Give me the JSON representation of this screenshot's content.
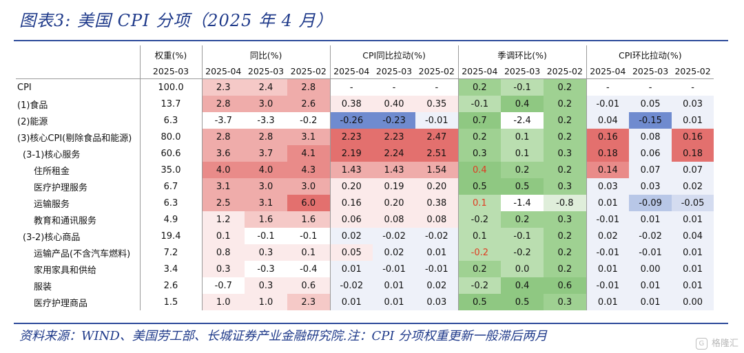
{
  "title": "图表3:  美国 CPI 分项（2025 年 4 月）",
  "source": "资料来源：WIND、美国劳工部、长城证券产业金融研究院.注：CPI 分项权重更新一般滞后两月",
  "watermark": "格隆汇",
  "watermark_icon": "G",
  "header": {
    "groups": [
      "权重(%)",
      "同比(%)",
      "CPI同比拉动(%)",
      "季调环比(%)",
      "CPI环比拉动(%)"
    ],
    "weight_period": "2025-03",
    "periods": [
      "2025-04",
      "2025-03",
      "2025-02"
    ]
  },
  "colors": {
    "red_scale": [
      "#fbeaea",
      "#f5c9c7",
      "#efacaa",
      "#e98b89",
      "#e3706e"
    ],
    "green_scale": [
      "#dfeeda",
      "#badeb0",
      "#9fd192",
      "#8fc882"
    ],
    "blue_scale": [
      "#eef1f9",
      "#d4dcf0",
      "#b8c7e7",
      "#93a9dc",
      "#6f8bcf"
    ],
    "highlight_text": "#e03a20"
  },
  "rows": [
    {
      "label": "CPI",
      "indent": 0,
      "weight": "100.0",
      "yoy": [
        "2.3",
        "2.4",
        "2.8"
      ],
      "yoy_pull": [
        "-",
        "-",
        "-"
      ],
      "mom": [
        "0.2",
        "-0.1",
        "0.2"
      ],
      "mom_pull": [
        "-",
        "-",
        "-"
      ]
    },
    {
      "label": "(1)食品",
      "indent": 0,
      "weight": "13.7",
      "yoy": [
        "2.8",
        "3.0",
        "2.6"
      ],
      "yoy_pull": [
        "0.38",
        "0.40",
        "0.35"
      ],
      "mom": [
        "-0.1",
        "0.4",
        "0.2"
      ],
      "mom_pull": [
        "-0.01",
        "0.05",
        "0.03"
      ]
    },
    {
      "label": "(2)能源",
      "indent": 0,
      "weight": "6.3",
      "yoy": [
        "-3.7",
        "-3.3",
        "-0.2"
      ],
      "yoy_pull": [
        "-0.26",
        "-0.23",
        "-0.01"
      ],
      "mom": [
        "0.7",
        "-2.4",
        "0.2"
      ],
      "mom_pull": [
        "0.04",
        "-0.15",
        "0.01"
      ]
    },
    {
      "label": "(3)核心CPI(剔除食品和能源)",
      "indent": 0,
      "weight": "80.0",
      "yoy": [
        "2.8",
        "2.8",
        "3.1"
      ],
      "yoy_pull": [
        "2.23",
        "2.23",
        "2.47"
      ],
      "mom": [
        "0.2",
        "0.1",
        "0.2"
      ],
      "mom_pull": [
        "0.16",
        "0.08",
        "0.16"
      ]
    },
    {
      "label": "(3-1)核心服务",
      "indent": 1,
      "weight": "60.6",
      "yoy": [
        "3.6",
        "3.7",
        "4.1"
      ],
      "yoy_pull": [
        "2.19",
        "2.24",
        "2.51"
      ],
      "mom": [
        "0.3",
        "0.1",
        "0.3"
      ],
      "mom_pull": [
        "0.18",
        "0.06",
        "0.18"
      ]
    },
    {
      "label": "住所租金",
      "indent": 2,
      "weight": "35.0",
      "yoy": [
        "4.0",
        "4.0",
        "4.3"
      ],
      "yoy_pull": [
        "1.43",
        "1.43",
        "1.54"
      ],
      "mom": [
        "0.4",
        "0.2",
        "0.2"
      ],
      "mom_pull": [
        "0.14",
        "0.07",
        "0.07"
      ]
    },
    {
      "label": "医疗护理服务",
      "indent": 2,
      "weight": "6.7",
      "yoy": [
        "3.1",
        "3.0",
        "3.0"
      ],
      "yoy_pull": [
        "0.20",
        "0.19",
        "0.20"
      ],
      "mom": [
        "0.5",
        "0.5",
        "0.3"
      ],
      "mom_pull": [
        "0.03",
        "0.03",
        "0.02"
      ]
    },
    {
      "label": "运输服务",
      "indent": 2,
      "weight": "6.3",
      "yoy": [
        "2.5",
        "3.1",
        "6.0"
      ],
      "yoy_pull": [
        "0.16",
        "0.20",
        "0.38"
      ],
      "mom": [
        "0.1",
        "-1.4",
        "-0.8"
      ],
      "mom_pull": [
        "0.01",
        "-0.09",
        "-0.05"
      ]
    },
    {
      "label": "教育和通讯服务",
      "indent": 2,
      "weight": "4.9",
      "yoy": [
        "1.2",
        "1.6",
        "1.6"
      ],
      "yoy_pull": [
        "0.06",
        "0.08",
        "0.08"
      ],
      "mom": [
        "-0.2",
        "0.2",
        "0.3"
      ],
      "mom_pull": [
        "-0.01",
        "0.01",
        "0.01"
      ]
    },
    {
      "label": "(3-2)核心商品",
      "indent": 1,
      "weight": "19.4",
      "yoy": [
        "0.1",
        "-0.1",
        "-0.1"
      ],
      "yoy_pull": [
        "0.02",
        "-0.02",
        "-0.02"
      ],
      "mom": [
        "0.1",
        "-0.1",
        "0.2"
      ],
      "mom_pull": [
        "0.02",
        "-0.02",
        "0.04"
      ]
    },
    {
      "label": "运输产品(不含汽车燃料)",
      "indent": 2,
      "weight": "7.2",
      "yoy": [
        "0.8",
        "0.3",
        "0.1"
      ],
      "yoy_pull": [
        "0.05",
        "0.02",
        "0.01"
      ],
      "mom": [
        "-0.2",
        "-0.2",
        "0.2"
      ],
      "mom_pull": [
        "-0.01",
        "-0.01",
        "0.01"
      ]
    },
    {
      "label": "家用家具和供给",
      "indent": 2,
      "weight": "3.4",
      "yoy": [
        "0.3",
        "-0.3",
        "-0.4"
      ],
      "yoy_pull": [
        "0.01",
        "-0.01",
        "-0.01"
      ],
      "mom": [
        "0.2",
        "0.0",
        "0.2"
      ],
      "mom_pull": [
        "0.01",
        "0.00",
        "0.01"
      ]
    },
    {
      "label": "服装",
      "indent": 2,
      "weight": "2.6",
      "yoy": [
        "-0.7",
        "0.3",
        "0.6"
      ],
      "yoy_pull": [
        "-0.02",
        "0.01",
        "0.02"
      ],
      "mom": [
        "-0.2",
        "0.4",
        "0.6"
      ],
      "mom_pull": [
        "-0.01",
        "0.01",
        "0.01"
      ]
    },
    {
      "label": "医疗护理商品",
      "indent": 2,
      "weight": "1.5",
      "yoy": [
        "1.0",
        "1.0",
        "2.3"
      ],
      "yoy_pull": [
        "0.01",
        "0.01",
        "0.03"
      ],
      "mom": [
        "0.5",
        "0.5",
        "0.3"
      ],
      "mom_pull": [
        "0.01",
        "0.01",
        "0.00"
      ]
    }
  ]
}
